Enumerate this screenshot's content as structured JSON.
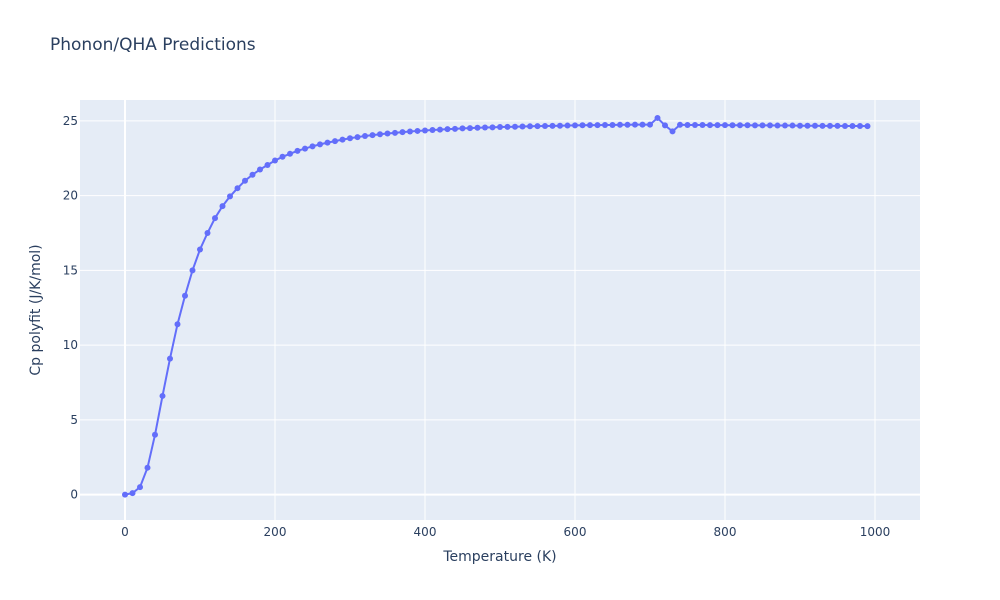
{
  "chart_data": {
    "type": "line",
    "title": "Phonon/QHA Predictions",
    "xlabel": "Temperature (K)",
    "ylabel": "Cp polyfit (J/K/mol)",
    "xlim": [
      -60,
      1060
    ],
    "ylim": [
      -1.7,
      26.4
    ],
    "xticks": [
      0,
      200,
      400,
      600,
      800,
      1000
    ],
    "yticks": [
      0,
      5,
      10,
      15,
      20,
      25
    ],
    "grid": true,
    "legend": "none",
    "colors": {
      "plot_bg": "#e5ecf6",
      "grid": "#ffffff",
      "line": "#636efa",
      "text": "#2a3f5f"
    },
    "series": [
      {
        "x": [
          0,
          10,
          20,
          30,
          40,
          50,
          60,
          70,
          80,
          90,
          100,
          110,
          120,
          130,
          140,
          150,
          160,
          170,
          180,
          190,
          200,
          210,
          220,
          230,
          240,
          250,
          260,
          270,
          280,
          290,
          300,
          310,
          320,
          330,
          340,
          350,
          360,
          370,
          380,
          390,
          400,
          410,
          420,
          430,
          440,
          450,
          460,
          470,
          480,
          490,
          500,
          510,
          520,
          530,
          540,
          550,
          560,
          570,
          580,
          590,
          600,
          610,
          620,
          630,
          640,
          650,
          660,
          670,
          680,
          690,
          700,
          710,
          720,
          730,
          740,
          750,
          760,
          770,
          780,
          790,
          800,
          810,
          820,
          830,
          840,
          850,
          860,
          870,
          880,
          890,
          900,
          910,
          920,
          930,
          940,
          950,
          960,
          970,
          980,
          990
        ],
        "y": [
          0,
          0.1,
          0.5,
          1.8,
          4.0,
          6.6,
          9.1,
          11.4,
          13.3,
          15.0,
          16.4,
          17.5,
          18.5,
          19.3,
          19.95,
          20.5,
          21.0,
          21.4,
          21.75,
          22.05,
          22.35,
          22.6,
          22.8,
          23.0,
          23.15,
          23.3,
          23.43,
          23.55,
          23.65,
          23.75,
          23.84,
          23.92,
          23.99,
          24.05,
          24.11,
          24.16,
          24.2,
          24.25,
          24.29,
          24.33,
          24.36,
          24.39,
          24.42,
          24.45,
          24.47,
          24.5,
          24.52,
          24.54,
          24.56,
          24.57,
          24.59,
          24.6,
          24.61,
          24.63,
          24.64,
          24.65,
          24.66,
          24.67,
          24.68,
          24.69,
          24.7,
          24.71,
          24.72,
          24.72,
          24.73,
          24.73,
          24.74,
          24.74,
          24.75,
          24.75,
          24.75,
          25.2,
          24.7,
          24.3,
          24.74,
          24.73,
          24.73,
          24.73,
          24.72,
          24.72,
          24.72,
          24.71,
          24.71,
          24.71,
          24.7,
          24.7,
          24.7,
          24.69,
          24.69,
          24.69,
          24.68,
          24.68,
          24.68,
          24.67,
          24.67,
          24.67,
          24.66,
          24.66,
          24.66,
          24.65
        ]
      }
    ]
  }
}
